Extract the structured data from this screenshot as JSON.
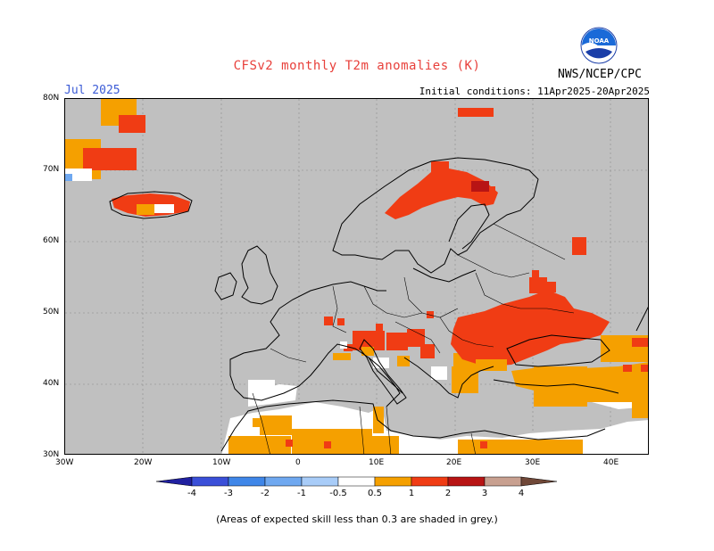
{
  "header": {
    "title": "CFSv2 monthly T2m anomalies (K)",
    "month": "Jul 2025",
    "initial_conditions": "Initial conditions: 11Apr2025-20Apr2025",
    "agency": "NWS/NCEP/CPC",
    "logo_text": "NOAA"
  },
  "axes": {
    "lat_labels": [
      "80N",
      "70N",
      "60N",
      "50N",
      "40N",
      "30N"
    ],
    "lon_labels": [
      "30W",
      "20W",
      "10W",
      "0",
      "10E",
      "20E",
      "30E",
      "40E"
    ],
    "lat_range": [
      30,
      80
    ],
    "lon_range": [
      -30,
      45
    ]
  },
  "colorbar": {
    "labels": [
      "-4",
      "-3",
      "-2",
      "-1",
      "-0.5",
      "0.5",
      "1",
      "2",
      "3",
      "4"
    ],
    "colors": [
      "#2020a0",
      "#3a4fd8",
      "#3f86e8",
      "#6fa8f0",
      "#a8ccf8",
      "#ffffff",
      "#f5a000",
      "#f03c14",
      "#b81414",
      "#c8a090",
      "#704838"
    ]
  },
  "note": "(Areas of expected skill less than 0.3 are shaded in grey.)",
  "colors": {
    "grey": "#c0c0c0",
    "white": "#ffffff",
    "orange": "#f5a000",
    "red": "#f03c14",
    "light_blue": "#a8ccf8"
  }
}
